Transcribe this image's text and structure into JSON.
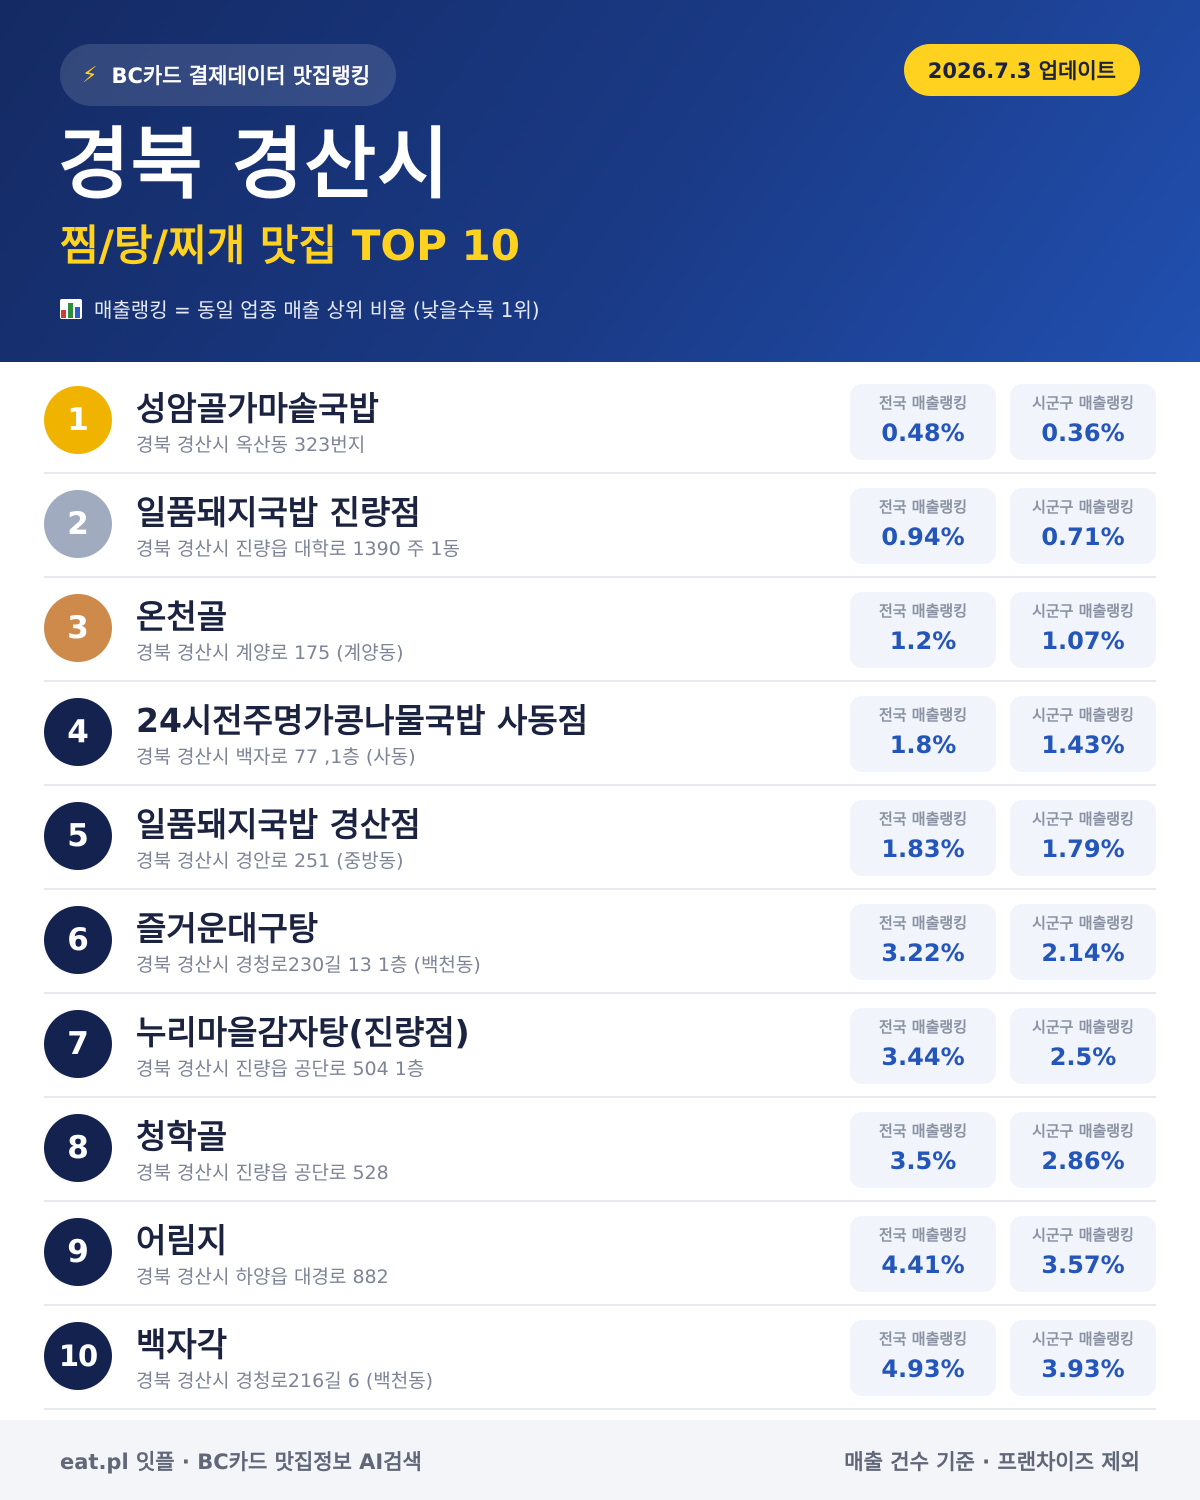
{
  "header": {
    "badge_label": "BC카드 결제데이터 맛집랭킹",
    "update_label": "2026.7.3 업데이트",
    "region_title": "경북 경산시",
    "category_title": "찜/탕/찌개 맛집 TOP 10",
    "note": "매출랭킹 = 동일 업종 매출 상위 비율 (낮을수록 1위)",
    "icons": {
      "badge": "lightning-icon",
      "note": "bar-chart-icon"
    }
  },
  "colors": {
    "header_dark": "#142a63",
    "header_light": "#2150b0",
    "accent_yellow": "#ffd21f",
    "gold": "#f0b400",
    "silver": "#a1abbf",
    "bronze": "#cd8a4a",
    "rank_default": "#14224f",
    "value_blue": "#2455b8"
  },
  "labels": {
    "national": "전국 매출랭킹",
    "local": "시군구 매출랭킹"
  },
  "restaurants": [
    {
      "rank": "1",
      "name": "성암골가마솥국밥",
      "address": "경북 경산시 옥산동 323번지",
      "national": "0.48%",
      "local": "0.36%"
    },
    {
      "rank": "2",
      "name": "일품돼지국밥 진량점",
      "address": "경북 경산시 진량읍 대학로 1390 주 1동",
      "national": "0.94%",
      "local": "0.71%"
    },
    {
      "rank": "3",
      "name": "온천골",
      "address": "경북 경산시 계양로 175 (계양동)",
      "national": "1.2%",
      "local": "1.07%"
    },
    {
      "rank": "4",
      "name": "24시전주명가콩나물국밥 사동점",
      "address": "경북 경산시 백자로 77 ,1층 (사동)",
      "national": "1.8%",
      "local": "1.43%"
    },
    {
      "rank": "5",
      "name": "일품돼지국밥 경산점",
      "address": "경북 경산시 경안로 251 (중방동)",
      "national": "1.83%",
      "local": "1.79%"
    },
    {
      "rank": "6",
      "name": "즐거운대구탕",
      "address": "경북 경산시 경청로230길 13 1층 (백천동)",
      "national": "3.22%",
      "local": "2.14%"
    },
    {
      "rank": "7",
      "name": "누리마을감자탕(진량점)",
      "address": "경북 경산시 진량읍 공단로 504 1층",
      "national": "3.44%",
      "local": "2.5%"
    },
    {
      "rank": "8",
      "name": "청학골",
      "address": "경북 경산시 진량읍 공단로 528",
      "national": "3.5%",
      "local": "2.86%"
    },
    {
      "rank": "9",
      "name": "어림지",
      "address": "경북 경산시 하양읍 대경로 882",
      "national": "4.41%",
      "local": "3.57%"
    },
    {
      "rank": "10",
      "name": "백자각",
      "address": "경북 경산시 경청로216길 6 (백천동)",
      "national": "4.93%",
      "local": "3.93%"
    }
  ],
  "footer": {
    "left": "eat.pl 잇플 · BC카드 맛집정보 AI검색",
    "right": "매출 건수 기준 · 프랜차이즈 제외"
  }
}
